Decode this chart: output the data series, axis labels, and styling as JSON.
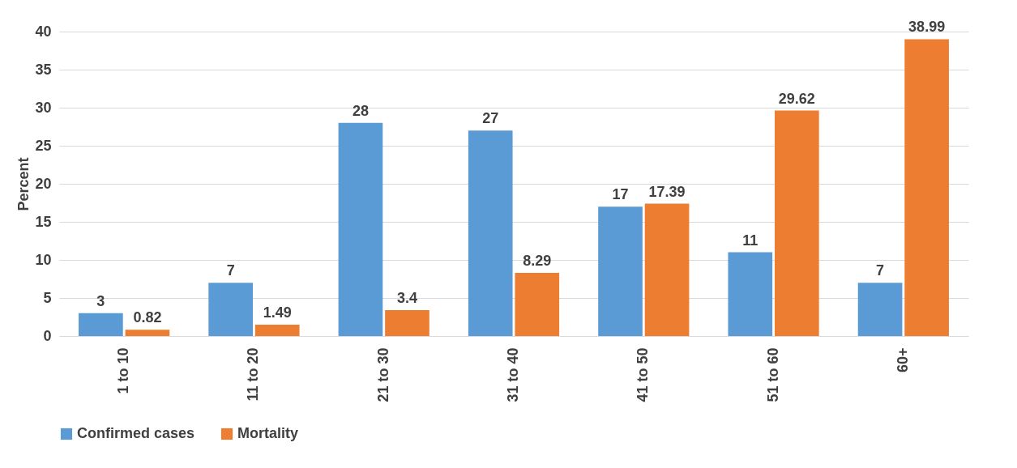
{
  "chart_data": {
    "type": "bar",
    "ylabel": "Percent",
    "categories": [
      "1 to 10",
      "11 to 20",
      "21 to 30",
      "31 to 40",
      "41 to 50",
      "51 to 60",
      "60+"
    ],
    "series": [
      {
        "name": "Confirmed cases",
        "color": "#5b9bd5",
        "values": [
          3,
          7,
          28,
          27,
          17,
          11,
          7
        ]
      },
      {
        "name": "Mortality",
        "color": "#ed7d31",
        "values": [
          0.82,
          1.49,
          3.4,
          8.29,
          17.39,
          29.62,
          38.99
        ]
      }
    ],
    "ylim": [
      0,
      40
    ],
    "yticks": [
      0,
      5,
      10,
      15,
      20,
      25,
      30,
      35,
      40
    ],
    "grid": "y",
    "legend": "bottom",
    "data_labels": true
  }
}
